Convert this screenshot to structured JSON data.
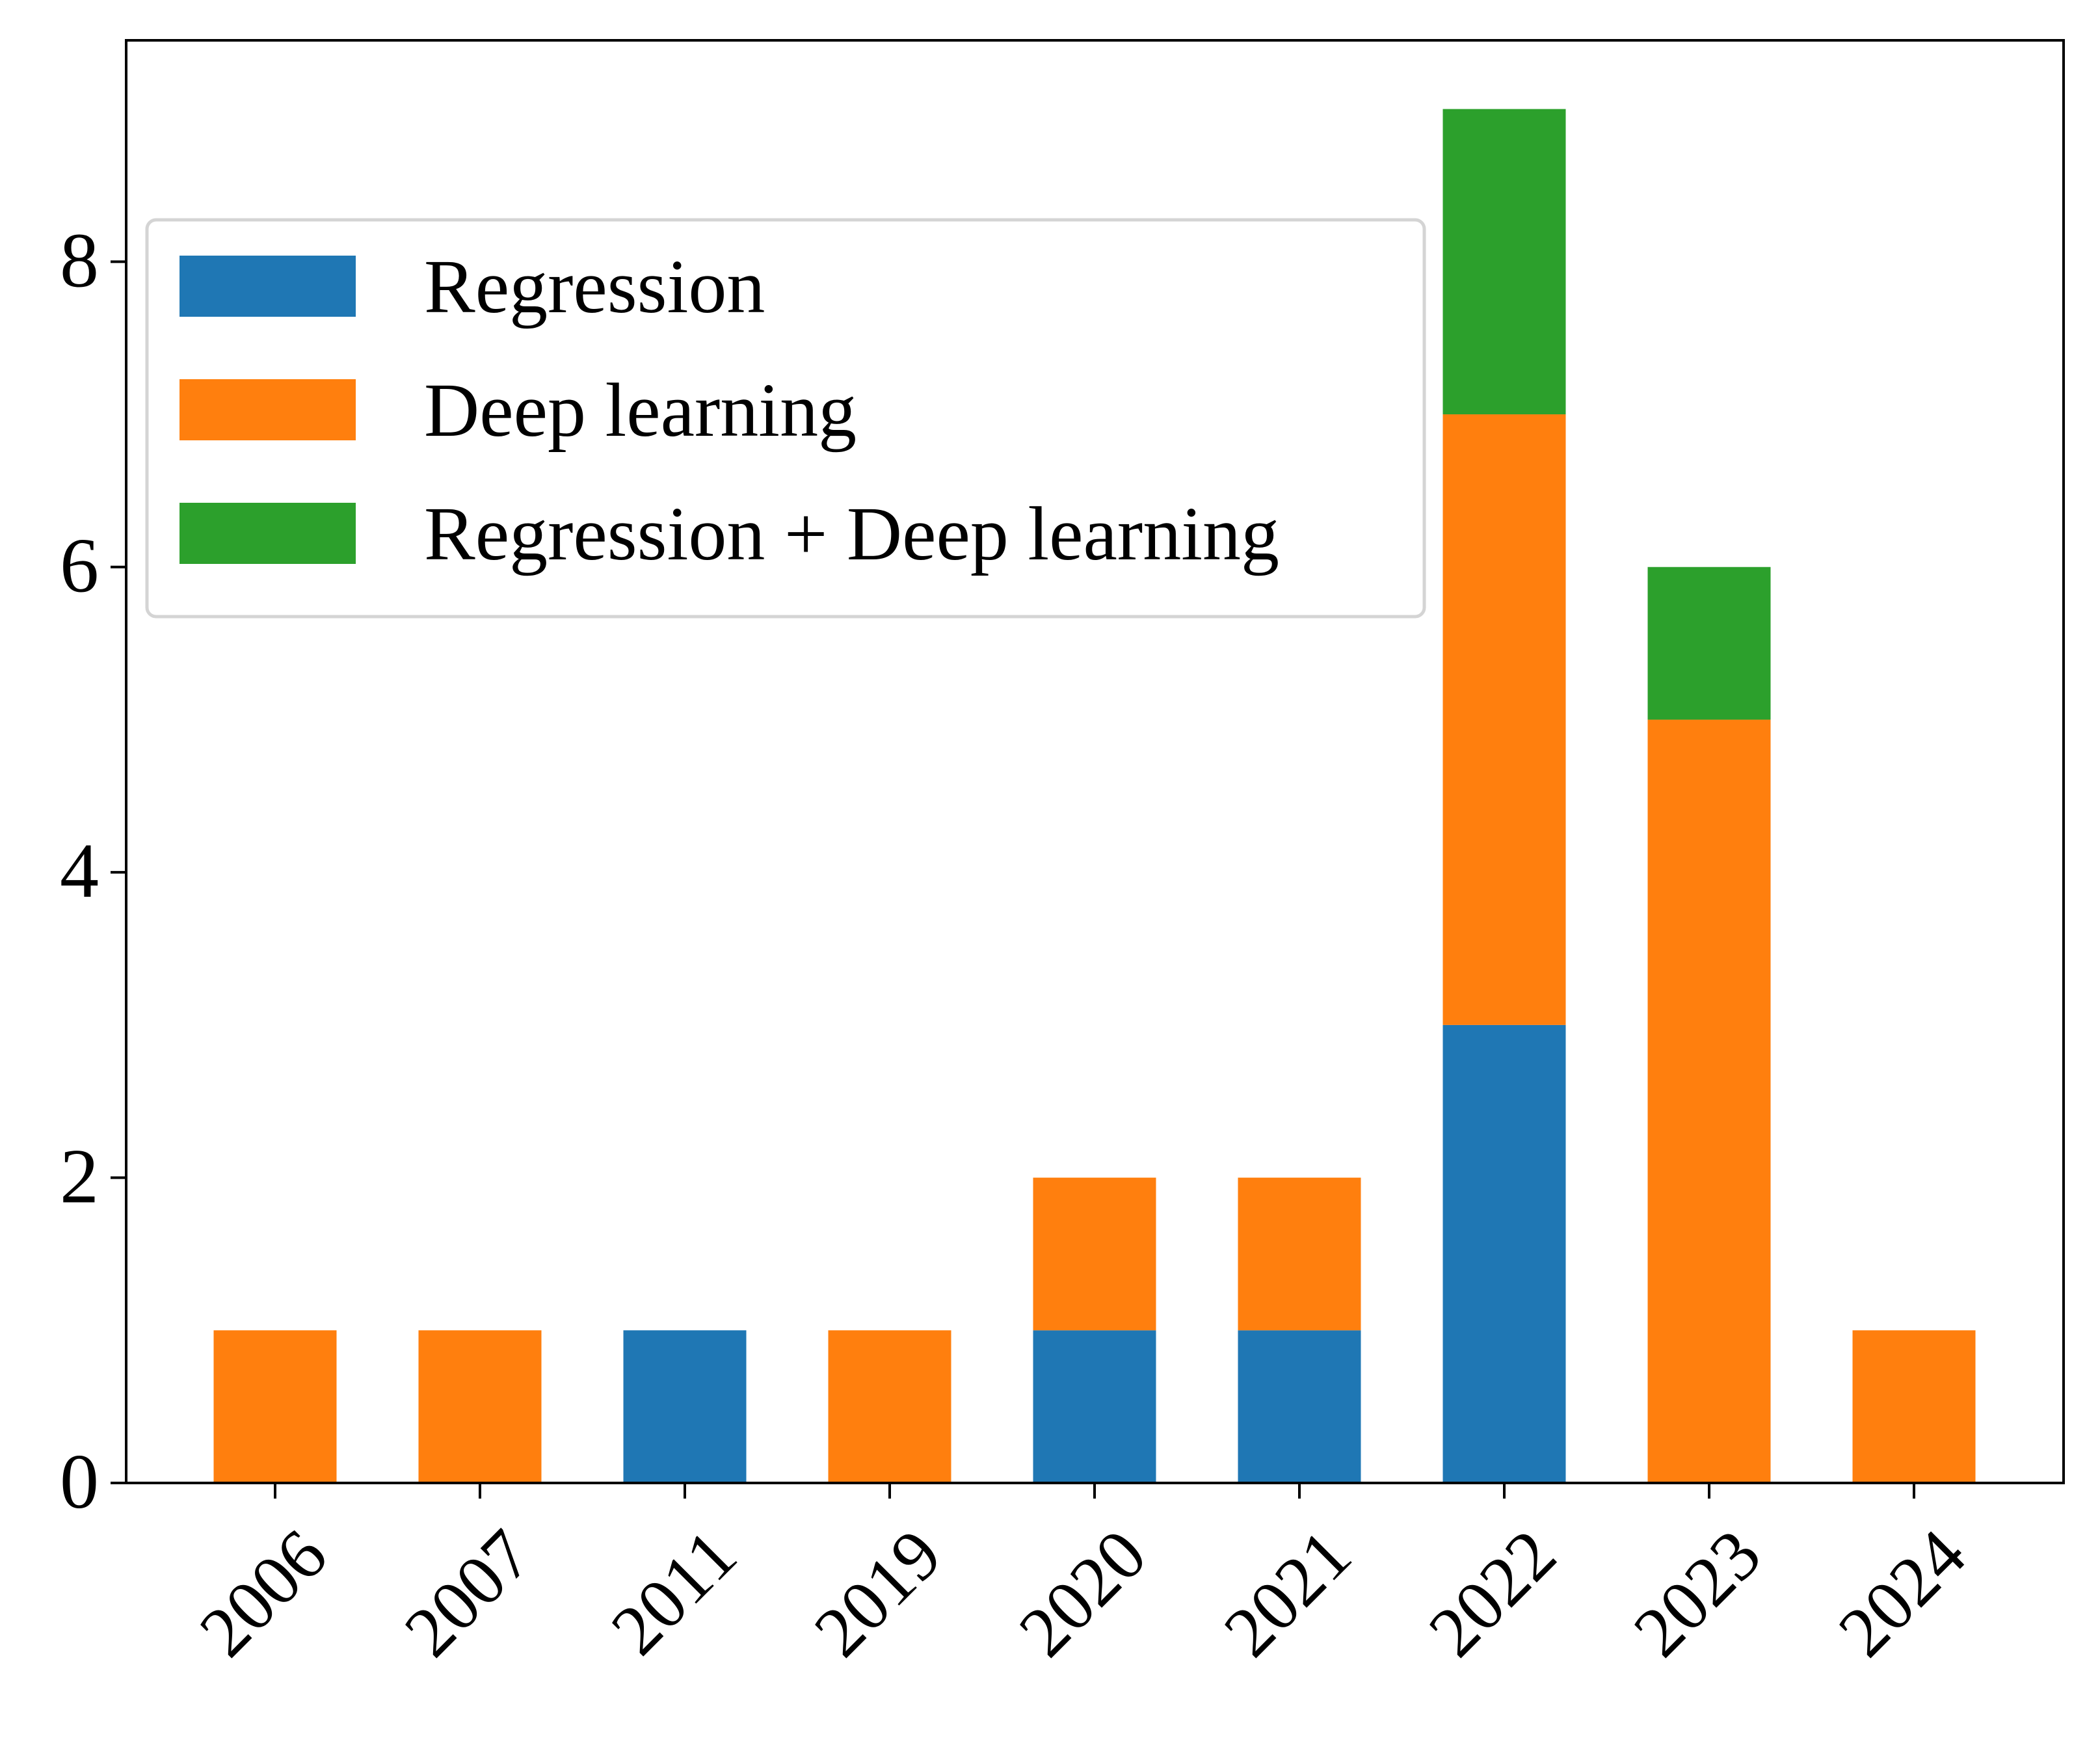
{
  "chart_data": {
    "type": "bar",
    "stacked": true,
    "categories": [
      "2006",
      "2007",
      "2011",
      "2019",
      "2020",
      "2021",
      "2022",
      "2023",
      "2024"
    ],
    "series": [
      {
        "name": "Regression",
        "color": "#1f77b4",
        "values": [
          0,
          0,
          1,
          0,
          1,
          1,
          3,
          0,
          0
        ]
      },
      {
        "name": "Deep learning",
        "color": "#ff7f0e",
        "values": [
          1,
          1,
          0,
          1,
          1,
          1,
          4,
          5,
          1
        ]
      },
      {
        "name": "Regression + Deep learning",
        "color": "#2ca02c",
        "values": [
          0,
          0,
          0,
          0,
          0,
          0,
          2,
          1,
          0
        ]
      }
    ],
    "ylim": [
      0,
      9.45
    ],
    "yticks": [
      "0",
      "2",
      "4",
      "6",
      "8"
    ],
    "xlabel": "",
    "ylabel": "",
    "title": "",
    "grid": false,
    "legend_position": "upper-left",
    "x_tick_rotation": "45 degrees"
  }
}
